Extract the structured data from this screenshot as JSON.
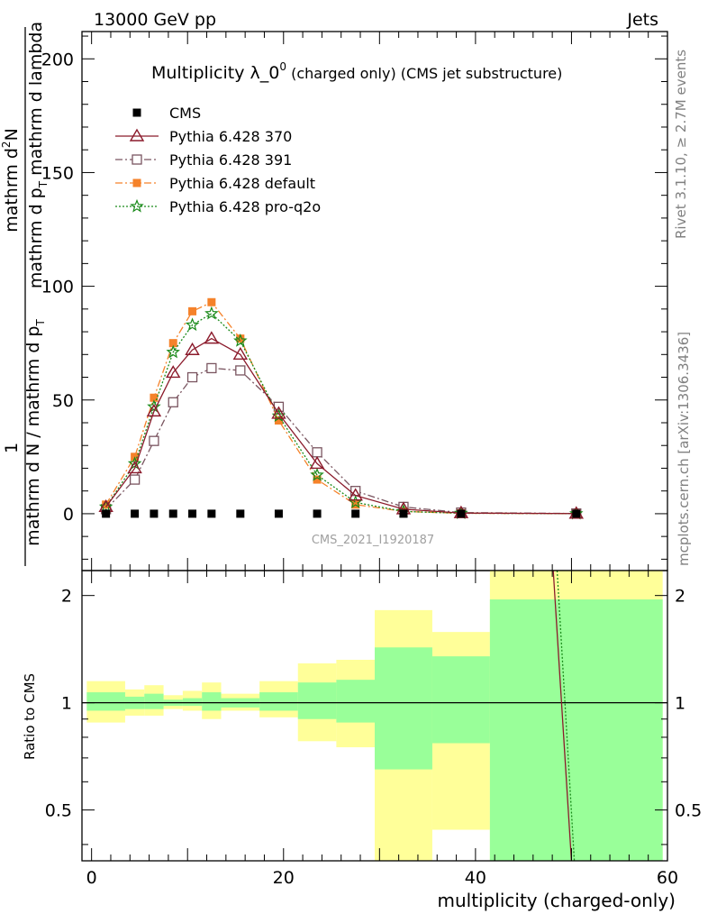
{
  "header": {
    "left": "13000 GeV pp",
    "right": "Jets"
  },
  "side_labels": {
    "rivet": "Rivet 3.1.10, ≥ 2.7M events",
    "mcplots": "mcplots.cern.ch [arXiv:1306.3436]"
  },
  "watermark": "CMS_2021_I1920187",
  "legend": {
    "items": [
      {
        "label": "CMS",
        "color": "#000000",
        "marker": "square-filled",
        "line": "none"
      },
      {
        "label": "Pythia 6.428 370",
        "color": "#8b1a2b",
        "marker": "triangle-open",
        "line": "solid"
      },
      {
        "label": "Pythia 6.428 391",
        "color": "#7a5560",
        "marker": "square-open",
        "line": "dashdot"
      },
      {
        "label": "Pythia 6.428 default",
        "color": "#f5822a",
        "marker": "square-filled",
        "line": "dashdot"
      },
      {
        "label": "Pythia 6.428 pro-q2o",
        "color": "#1a8a1a",
        "marker": "star",
        "line": "dotted"
      }
    ]
  },
  "chart_data": {
    "type": "line",
    "title_main": "Multiplicity λ_0",
    "title_sup": "0",
    "title_rest": " (charged only) (CMS jet substructure)",
    "xlabel": "multiplicity (charged-only)",
    "ylabel_top": "1",
    "ylabel_num": "mathrm d",
    "ylabel_num_sup": "2",
    "ylabel_num_end": "N",
    "ylabel_den": "mathrm d p",
    "ylabel_den_sub": "T",
    "ylabel_den_end": " mathrm d lambda",
    "ylabel_outer": "mathrm d N / mathrm d p",
    "ylabel_outer_sub": "T",
    "ratio_ylabel": "Ratio to CMS",
    "xlim": [
      -1,
      60
    ],
    "ylim": [
      -25,
      212
    ],
    "ratio_ylim": [
      0.36,
      2.35
    ],
    "x_ticks": [
      "0",
      "20",
      "40",
      "60"
    ],
    "y_ticks": [
      "0",
      "50",
      "100",
      "150",
      "200"
    ],
    "ratio_ticks": [
      "0.5",
      "1",
      "2"
    ],
    "x": [
      1.5,
      4.5,
      6.5,
      8.5,
      10.5,
      12.5,
      15.5,
      19.5,
      23.5,
      27.5,
      32.5,
      38.5,
      50.5
    ],
    "bin_edges": [
      -0.5,
      3.5,
      5.5,
      7.5,
      9.5,
      11.5,
      13.5,
      17.5,
      21.5,
      25.5,
      29.5,
      35.5,
      41.5,
      59.5
    ],
    "series": [
      {
        "name": "CMS",
        "values": [
          0,
          0,
          0,
          0,
          0,
          0,
          0,
          0,
          0,
          0,
          0,
          0,
          0
        ]
      },
      {
        "name": "Pythia 6.428 370",
        "values": [
          3,
          20,
          45,
          62,
          72,
          77,
          70,
          44,
          22,
          8,
          2,
          0.3,
          0.05
        ]
      },
      {
        "name": "Pythia 6.428 391",
        "values": [
          2,
          15,
          32,
          49,
          60,
          64,
          63,
          47,
          27,
          10,
          3,
          0.5,
          0.1
        ]
      },
      {
        "name": "Pythia 6.428 default",
        "values": [
          4,
          25,
          51,
          75,
          89,
          93,
          77,
          41,
          15,
          4,
          1,
          0.2,
          0.02
        ]
      },
      {
        "name": "Pythia 6.428 pro-q2o",
        "values": [
          3,
          22,
          47,
          71,
          83,
          88,
          76,
          43,
          17,
          5,
          1,
          0.2,
          0.03
        ]
      }
    ],
    "ratio_band_yellow": [
      [
        0.88,
        1.15
      ],
      [
        0.92,
        1.09
      ],
      [
        0.92,
        1.12
      ],
      [
        0.96,
        1.05
      ],
      [
        0.95,
        1.08
      ],
      [
        0.9,
        1.14
      ],
      [
        0.95,
        1.06
      ],
      [
        0.91,
        1.15
      ],
      [
        0.78,
        1.29
      ],
      [
        0.75,
        1.32
      ],
      [
        0.32,
        1.82
      ],
      [
        0.44,
        1.58
      ],
      [
        0.3,
        2.4
      ]
    ],
    "ratio_band_green": [
      [
        0.95,
        1.07
      ],
      [
        0.96,
        1.04
      ],
      [
        0.96,
        1.06
      ],
      [
        0.98,
        1.02
      ],
      [
        0.98,
        1.03
      ],
      [
        0.95,
        1.07
      ],
      [
        0.97,
        1.03
      ],
      [
        0.95,
        1.07
      ],
      [
        0.9,
        1.14
      ],
      [
        0.88,
        1.16
      ],
      [
        0.65,
        1.43
      ],
      [
        0.77,
        1.35
      ],
      [
        0.3,
        1.95
      ]
    ],
    "ratio_curves": [
      {
        "name": "Pythia 6.428 370",
        "x": [
          48.1,
          50.0
        ],
        "values": [
          2.35,
          0.36
        ]
      },
      {
        "name": "Pythia 6.428 pro-q2o",
        "x": [
          48.5,
          50.3
        ],
        "values": [
          2.35,
          0.36
        ]
      }
    ],
    "grid": false,
    "legend_position": "top-left"
  }
}
